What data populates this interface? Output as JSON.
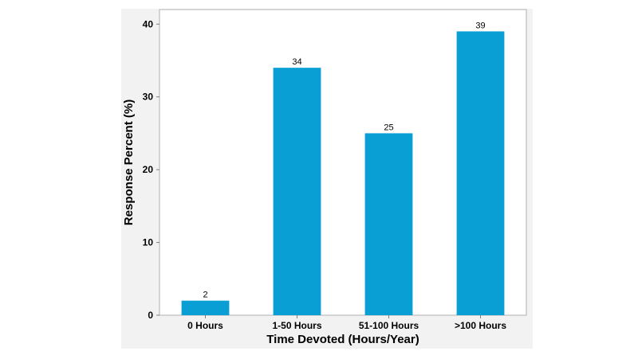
{
  "chart_data": {
    "type": "bar",
    "categories": [
      "0 Hours",
      "1-50 Hours",
      "51-100 Hours",
      ">100 Hours"
    ],
    "values": [
      2,
      34,
      25,
      39
    ],
    "data_labels": [
      "2",
      "34",
      "25",
      "39"
    ],
    "title": "",
    "xlabel": "Time Devoted (Hours/Year)",
    "ylabel": "Response Percent (%)",
    "ylim": [
      0,
      42
    ],
    "yticks": [
      0,
      10,
      20,
      30,
      40
    ],
    "ytick_labels": [
      "0",
      "10",
      "20",
      "30",
      "40"
    ],
    "grid": false,
    "legend": "none",
    "bar_color": "#0a9fd4"
  }
}
